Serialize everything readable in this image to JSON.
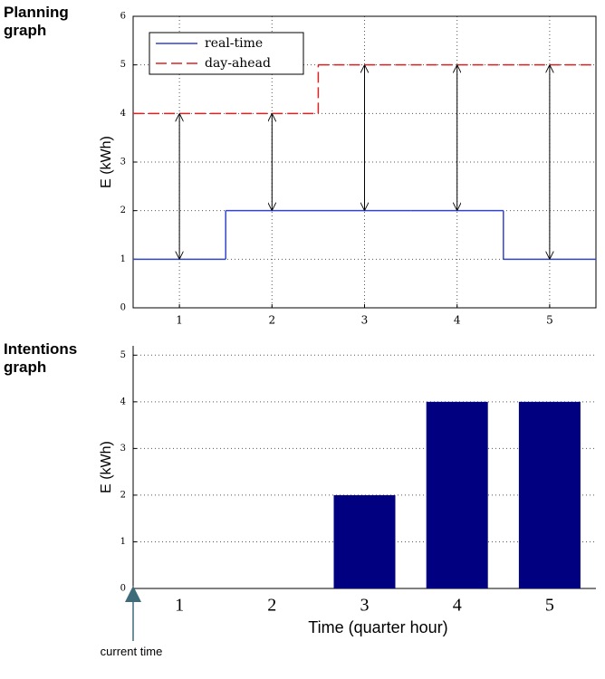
{
  "chart_data": [
    {
      "type": "line",
      "title": "Planning graph",
      "ylabel": "E (kWh)",
      "x": [
        1,
        2,
        3,
        4,
        5
      ],
      "xlim": [
        0.5,
        5.5
      ],
      "xticks": [
        1,
        2,
        3,
        4,
        5
      ],
      "ylim": [
        0,
        6
      ],
      "yticks": [
        0,
        1,
        2,
        3,
        4,
        5,
        6
      ],
      "grid": true,
      "step": true,
      "legend": "upper left",
      "series": [
        {
          "name": "real-time",
          "color": "#3344cc",
          "values": [
            1,
            2,
            2,
            2,
            1
          ]
        },
        {
          "name": "day-ahead",
          "color": "#dd2222",
          "values": [
            4,
            4,
            5,
            5,
            5
          ]
        }
      ]
    },
    {
      "type": "bar",
      "title": "Intentions graph",
      "ylabel": "E (kWh)",
      "xlabel": "Time (quarter hour)",
      "categories": [
        "1",
        "2",
        "3",
        "4",
        "5"
      ],
      "values": [
        0,
        0,
        2,
        4,
        4
      ],
      "color": "#000080",
      "ylim": [
        0,
        5.2
      ],
      "yticks": [
        0,
        1,
        2,
        3,
        4,
        5
      ],
      "grid": true,
      "annotation": "current time"
    }
  ]
}
